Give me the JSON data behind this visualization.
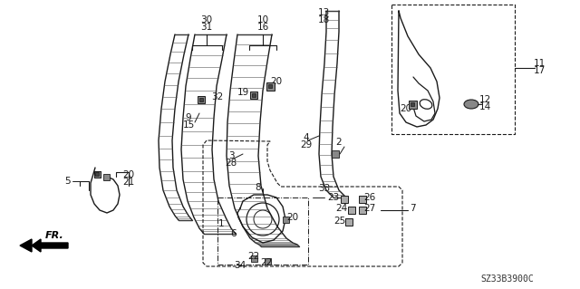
{
  "bg_color": "#ffffff",
  "diagram_code": "SZ33B3900C",
  "lw": 1.0,
  "color": "#1a1a1a"
}
